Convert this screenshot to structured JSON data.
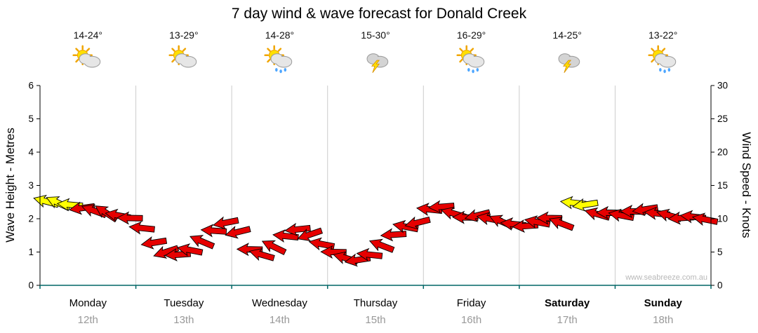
{
  "title": "7 day wind & wave forecast for Donald Creek",
  "watermark": "www.seabreeze.com.au",
  "colors": {
    "arrow": "#e60000",
    "arrow_strong": "#ffff00",
    "arrow_outline": "#000000",
    "grid": "#cccccc",
    "axis": "#000000",
    "baseline": "#006666",
    "day_text": "#000000",
    "date_text": "#999999",
    "watermark_text": "#b8b8b8",
    "sun": "#ffdf00",
    "sun_ray": "#f0a500",
    "cloud": "#e6e6e6",
    "storm_cloud": "#d4d4d4",
    "rain": "#4da6ff",
    "bolt": "#ffe000"
  },
  "chart_data": {
    "type": "wind-arrow-timeseries",
    "left_axis": {
      "label": "Wave Height - Metres",
      "ylim": [
        0,
        6
      ],
      "ticks": [
        0,
        1,
        2,
        3,
        4,
        5,
        6
      ]
    },
    "right_axis": {
      "label": "Wind Speed - Knots",
      "ylim": [
        0,
        30
      ],
      "ticks": [
        0,
        5,
        10,
        15,
        20,
        25,
        30
      ]
    },
    "yellow_threshold_knots": 12,
    "grid": "vertical-day-separators",
    "days": [
      {
        "name": "Monday",
        "date": "12th",
        "temp": "14-24°",
        "icon": "partly-cloudy",
        "bold": false,
        "wind_knots": [
          12.6,
          12.4,
          12.1,
          11.6,
          11.2,
          10.9,
          10.5,
          10.1
        ],
        "wind_dir_deg": [
          195,
          205,
          185,
          172,
          200,
          213,
          190,
          181
        ]
      },
      {
        "name": "Tuesday",
        "date": "13th",
        "temp": "13-29°",
        "icon": "partly-cloudy",
        "bold": false,
        "wind_knots": [
          8.6,
          6.4,
          5.0,
          4.6,
          5.3,
          6.6,
          8.2,
          9.4
        ],
        "wind_dir_deg": [
          186,
          171,
          162,
          176,
          191,
          203,
          184,
          169
        ]
      },
      {
        "name": "Wednesday",
        "date": "14th",
        "temp": "14-28°",
        "icon": "sun-rain",
        "bold": false,
        "wind_knots": [
          8.0,
          5.4,
          4.6,
          5.8,
          7.4,
          8.4,
          7.6,
          6.2
        ],
        "wind_dir_deg": [
          166,
          181,
          196,
          206,
          186,
          174,
          161,
          191
        ]
      },
      {
        "name": "Thursday",
        "date": "15th",
        "temp": "15-30°",
        "icon": "storm",
        "bold": false,
        "wind_knots": [
          5.0,
          4.1,
          3.8,
          4.6,
          6.0,
          7.6,
          8.8,
          9.4
        ],
        "wind_dir_deg": [
          181,
          196,
          171,
          186,
          201,
          176,
          191,
          166
        ]
      },
      {
        "name": "Friday",
        "date": "16th",
        "temp": "16-29°",
        "icon": "sun-rain",
        "bold": false,
        "wind_knots": [
          11.4,
          11.8,
          10.8,
          10.2,
          10.5,
          10.0,
          9.6,
          9.2
        ],
        "wind_dir_deg": [
          186,
          176,
          196,
          181,
          166,
          191,
          204,
          186
        ]
      },
      {
        "name": "Saturday",
        "date": "17th",
        "temp": "14-25°",
        "icon": "storm",
        "bold": true,
        "wind_knots": [
          8.9,
          9.5,
          10.1,
          9.3,
          12.4,
          12.1,
          10.7,
          10.9
        ],
        "wind_dir_deg": [
          176,
          191,
          181,
          201,
          186,
          171,
          196,
          181
        ]
      },
      {
        "name": "Sunday",
        "date": "18th",
        "temp": "13-22°",
        "icon": "sun-rain",
        "bold": true,
        "wind_knots": [
          10.5,
          11.1,
          11.4,
          10.8,
          10.5,
          10.1,
          10.3,
          9.9
        ],
        "wind_dir_deg": [
          191,
          181,
          171,
          186,
          196,
          176,
          186,
          191
        ]
      }
    ]
  }
}
